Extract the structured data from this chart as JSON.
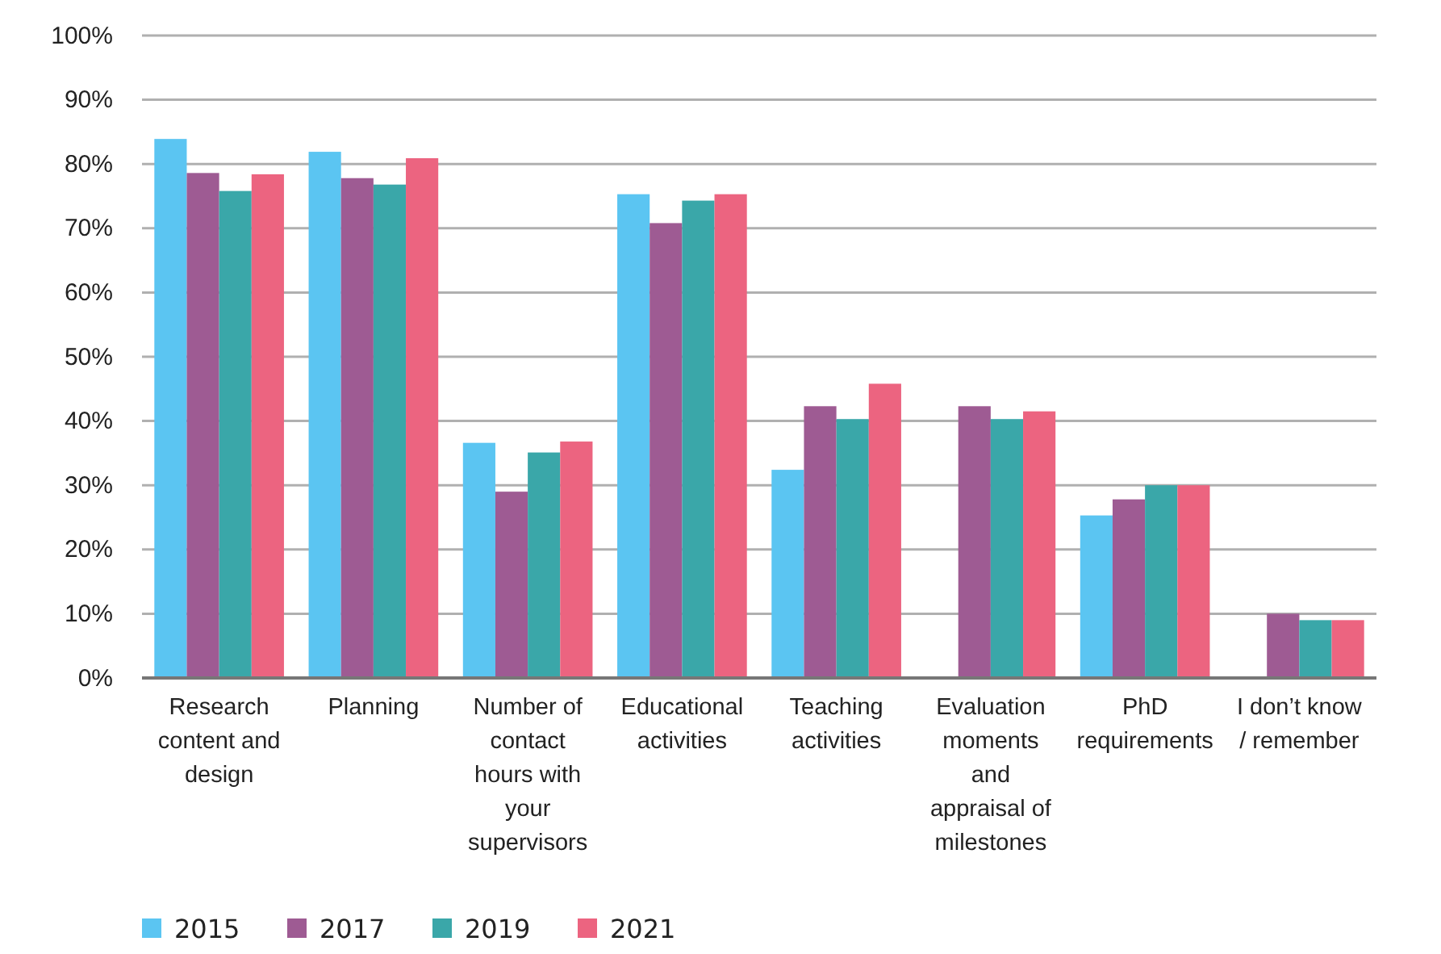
{
  "chart_data": {
    "type": "bar",
    "categories": [
      "Research content and design",
      "Planning",
      "Number of contact hours with your supervisors",
      "Educational activities",
      "Teaching activities",
      "Evaluation moments and appraisal of milestones",
      "PhD requirements",
      "I don’t know / remember"
    ],
    "series": [
      {
        "name": "2015",
        "color": "#5bc5f2",
        "values": [
          83.9,
          81.9,
          36.6,
          75.3,
          32.4,
          null,
          25.3,
          null
        ]
      },
      {
        "name": "2017",
        "color": "#9e5b93",
        "values": [
          78.6,
          77.8,
          29.0,
          70.8,
          42.3,
          42.3,
          27.8,
          10.0
        ]
      },
      {
        "name": "2019",
        "color": "#3aa7a9",
        "values": [
          75.8,
          76.8,
          35.1,
          74.3,
          40.3,
          40.3,
          30.0,
          9.0
        ]
      },
      {
        "name": "2021",
        "color": "#ec6480",
        "values": [
          78.4,
          80.9,
          36.8,
          75.3,
          45.8,
          41.5,
          30.0,
          9.0
        ]
      }
    ],
    "ylim": [
      0,
      100
    ],
    "yticks": [
      {
        "value": 0,
        "label": "0%"
      },
      {
        "value": 10,
        "label": "10%"
      },
      {
        "value": 20,
        "label": "20%"
      },
      {
        "value": 30,
        "label": "30%"
      },
      {
        "value": 40,
        "label": "40%"
      },
      {
        "value": 50,
        "label": "50%"
      },
      {
        "value": 60,
        "label": "60%"
      },
      {
        "value": 70,
        "label": "70%"
      },
      {
        "value": 80,
        "label": "80%"
      },
      {
        "value": 90,
        "label": "90%"
      },
      {
        "value": 100,
        "label": "100%"
      }
    ],
    "grid": "y",
    "legend": "bottom left"
  }
}
